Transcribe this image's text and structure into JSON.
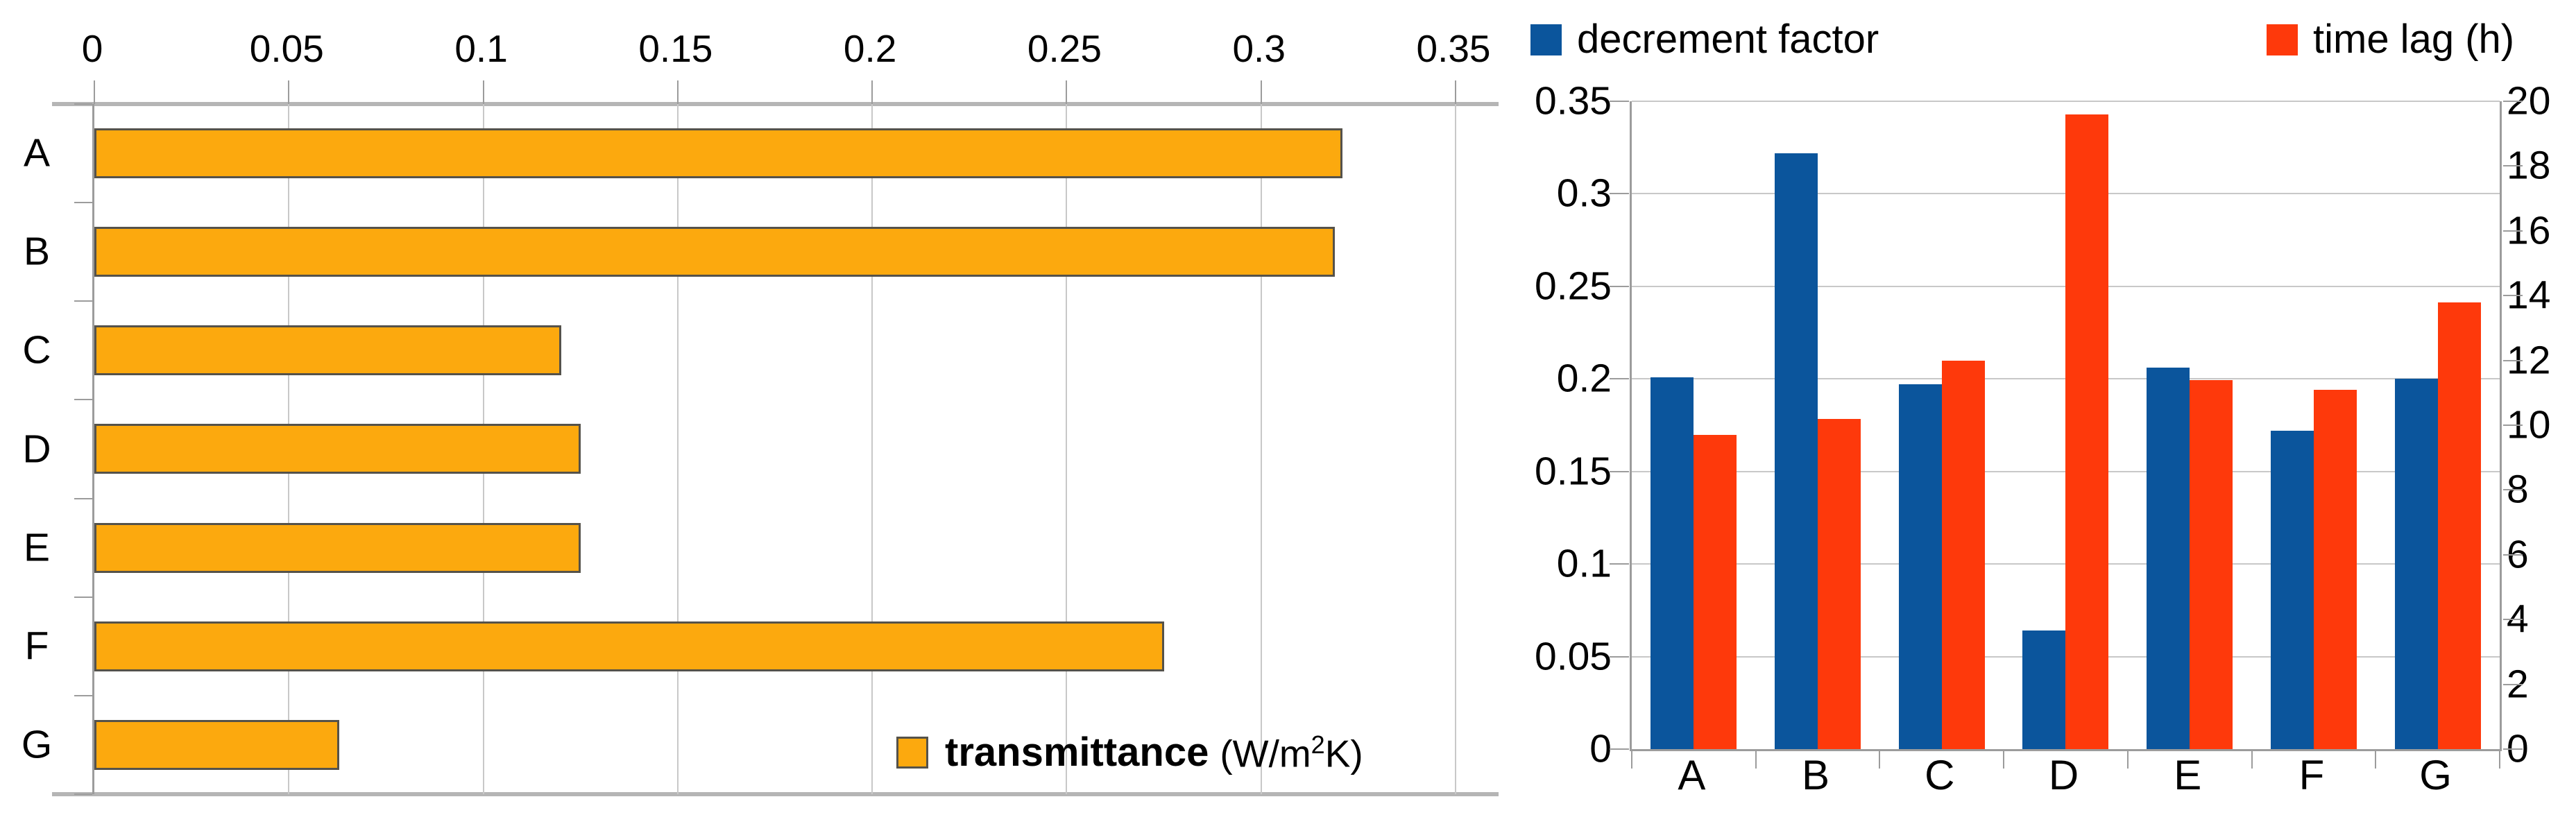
{
  "figure": {
    "left_legend": {
      "label": "transmittance",
      "unit_prefix": "(W/m",
      "unit_sup": "2",
      "unit_suffix": "K)"
    },
    "right_legend": {
      "series1": "decrement factor",
      "series2": "time lag (h)"
    }
  },
  "colors": {
    "orange": "#FCA90E",
    "orange_border": "#55524A",
    "blue": "#0B559C",
    "red": "#FE390B",
    "grid": "#C8C8C8",
    "axis": "#9C9C9C",
    "frame": "#B5B5B5"
  },
  "chart_data": [
    {
      "type": "bar",
      "orientation": "horizontal",
      "title": "",
      "categories": [
        "A",
        "B",
        "C",
        "D",
        "E",
        "F",
        "G"
      ],
      "series": [
        {
          "name": "transmittance (W/m2K)",
          "color": "#FCA90E",
          "border_color": "#55524A",
          "values": [
            0.321,
            0.319,
            0.12,
            0.125,
            0.125,
            0.275,
            0.063
          ]
        }
      ],
      "xlabel": "",
      "ylabel": "",
      "xlim": [
        0,
        0.35
      ],
      "xtick_values": [
        0,
        0.05,
        0.1,
        0.15,
        0.2,
        0.25,
        0.3,
        0.35
      ],
      "xtick_labels": [
        "0",
        "0.05",
        "0.1",
        "0.15",
        "0.2",
        "0.25",
        "0.3",
        "0.35"
      ],
      "axis_labels_position": "top",
      "grid": true,
      "legend": {
        "label": "transmittance",
        "unit": "(W/m2K)",
        "position": "bottom-right"
      }
    },
    {
      "type": "bar",
      "orientation": "vertical",
      "title": "",
      "categories": [
        "A",
        "B",
        "C",
        "D",
        "E",
        "F",
        "G"
      ],
      "series": [
        {
          "name": "decrement factor",
          "axis": "left",
          "color": "#0B559C",
          "values": [
            0.201,
            0.322,
            0.197,
            0.064,
            0.206,
            0.172,
            0.2
          ]
        },
        {
          "name": "time lag (h)",
          "axis": "right",
          "color": "#FE390B",
          "values": [
            9.7,
            10.2,
            12.0,
            19.6,
            11.4,
            11.1,
            13.8
          ]
        }
      ],
      "left_axis": {
        "lim": [
          0,
          0.35
        ],
        "tick_values": [
          0.35,
          0.3,
          0.25,
          0.2,
          0.15,
          0.1,
          0.05,
          0
        ],
        "tick_labels": [
          "0.35",
          "0.3",
          "0.25",
          "0.2",
          "0.15",
          "0.1",
          "0.05",
          "0"
        ]
      },
      "right_axis": {
        "lim": [
          0,
          20
        ],
        "tick_values": [
          20,
          18,
          16,
          14,
          12,
          10,
          8,
          6,
          4,
          2,
          0
        ],
        "tick_labels": [
          "20",
          "18",
          "16",
          "14",
          "12",
          "10",
          "8",
          "6",
          "4",
          "2",
          "0"
        ]
      },
      "grid": true,
      "legend_position": "top"
    }
  ]
}
